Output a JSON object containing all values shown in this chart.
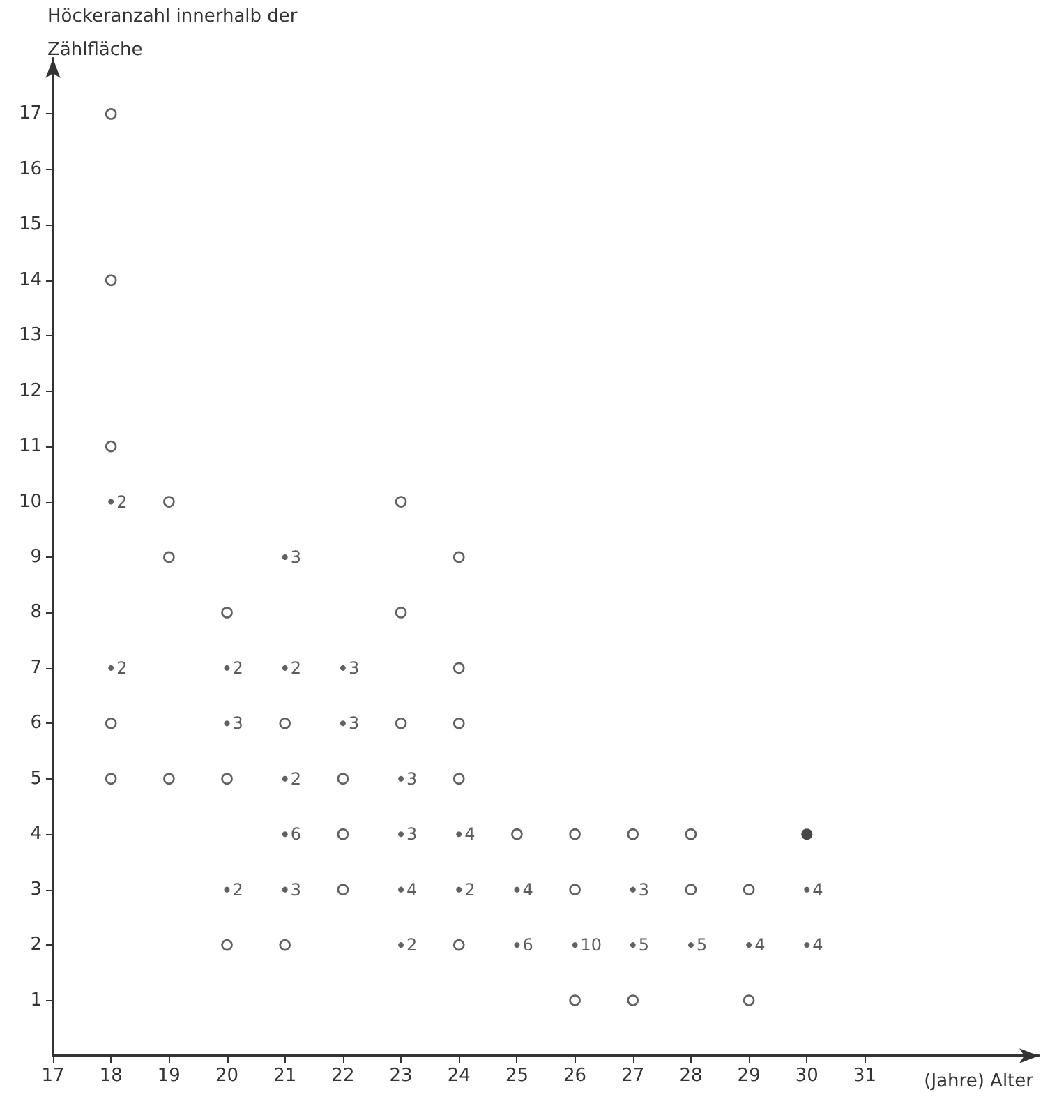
{
  "chart_data": {
    "type": "scatter",
    "ylabel": "Höckeranzahl innerhalb der\nZählfläche",
    "xlabel": "(Jahre) Alter",
    "xlim": [
      17,
      34
    ],
    "xticks": [
      17,
      18,
      19,
      20,
      21,
      22,
      23,
      24,
      25,
      26,
      27,
      28,
      29,
      30,
      31
    ],
    "ylim": [
      0,
      18
    ],
    "yticks": [
      1,
      2,
      3,
      4,
      5,
      6,
      7,
      8,
      9,
      10,
      11,
      12,
      13,
      14,
      15,
      16,
      17
    ],
    "marker": "circle",
    "series": [
      {
        "color": "#3a3a3a",
        "x": [
          18,
          18,
          18,
          18,
          18,
          19,
          19,
          19,
          20,
          20,
          20,
          21,
          21,
          22,
          22,
          22,
          23,
          23,
          23,
          24,
          24,
          24,
          24,
          24,
          25,
          26,
          26,
          26,
          27,
          27,
          28,
          28,
          29,
          29
        ],
        "values": [
          17,
          14,
          11,
          6,
          5,
          10,
          9,
          5,
          8,
          5,
          2,
          6,
          2,
          5,
          4,
          3,
          10,
          8,
          6,
          9,
          7,
          6,
          5,
          2,
          4,
          4,
          3,
          1,
          4,
          1,
          4,
          3,
          3,
          1
        ]
      },
      {
        "color": "#3a3a3a",
        "x": [
          18,
          18,
          20,
          20,
          20,
          21,
          21,
          21,
          21,
          21,
          22,
          22,
          23,
          23,
          23,
          23,
          24,
          24,
          25,
          25,
          26,
          27,
          27,
          28,
          29,
          30,
          30
        ],
        "values": [
          10,
          7,
          7,
          6,
          3,
          9,
          7,
          5,
          4,
          3,
          7,
          6,
          5,
          4,
          3,
          2,
          4,
          3,
          3,
          2,
          2,
          3,
          2,
          2,
          2,
          3,
          2
        ]
      },
      {
        "color": "#1a1a1a",
        "x": [
          30
        ],
        "values": [
          4
        ]
      }
    ],
    "annotations": [
      {
        "text": "2",
        "x": 18,
        "y": 10
      },
      {
        "text": "2",
        "x": 18,
        "y": 7
      },
      {
        "text": "2",
        "x": 20,
        "y": 7
      },
      {
        "text": "3",
        "x": 20,
        "y": 6
      },
      {
        "text": "2",
        "x": 20,
        "y": 3
      },
      {
        "text": "3",
        "x": 21,
        "y": 9
      },
      {
        "text": "2",
        "x": 21,
        "y": 7
      },
      {
        "text": "2",
        "x": 21,
        "y": 5
      },
      {
        "text": "6",
        "x": 21,
        "y": 4
      },
      {
        "text": "3",
        "x": 21,
        "y": 3
      },
      {
        "text": "3",
        "x": 22,
        "y": 7
      },
      {
        "text": "3",
        "x": 22,
        "y": 6
      },
      {
        "text": "3",
        "x": 23,
        "y": 5
      },
      {
        "text": "3",
        "x": 23,
        "y": 4
      },
      {
        "text": "4",
        "x": 23,
        "y": 3
      },
      {
        "text": "2",
        "x": 23,
        "y": 2
      },
      {
        "text": "4",
        "x": 24,
        "y": 4
      },
      {
        "text": "2",
        "x": 24,
        "y": 3
      },
      {
        "text": "4",
        "x": 25,
        "y": 3
      },
      {
        "text": "6",
        "x": 25,
        "y": 2
      },
      {
        "text": "10",
        "x": 26,
        "y": 2
      },
      {
        "text": "3",
        "x": 27,
        "y": 3
      },
      {
        "text": "5",
        "x": 27,
        "y": 2
      },
      {
        "text": "5",
        "x": 28,
        "y": 2
      },
      {
        "text": "4",
        "x": 29,
        "y": 2
      },
      {
        "text": "4",
        "x": 30,
        "y": 3
      },
      {
        "text": "4",
        "x": 30,
        "y": 2
      }
    ]
  }
}
